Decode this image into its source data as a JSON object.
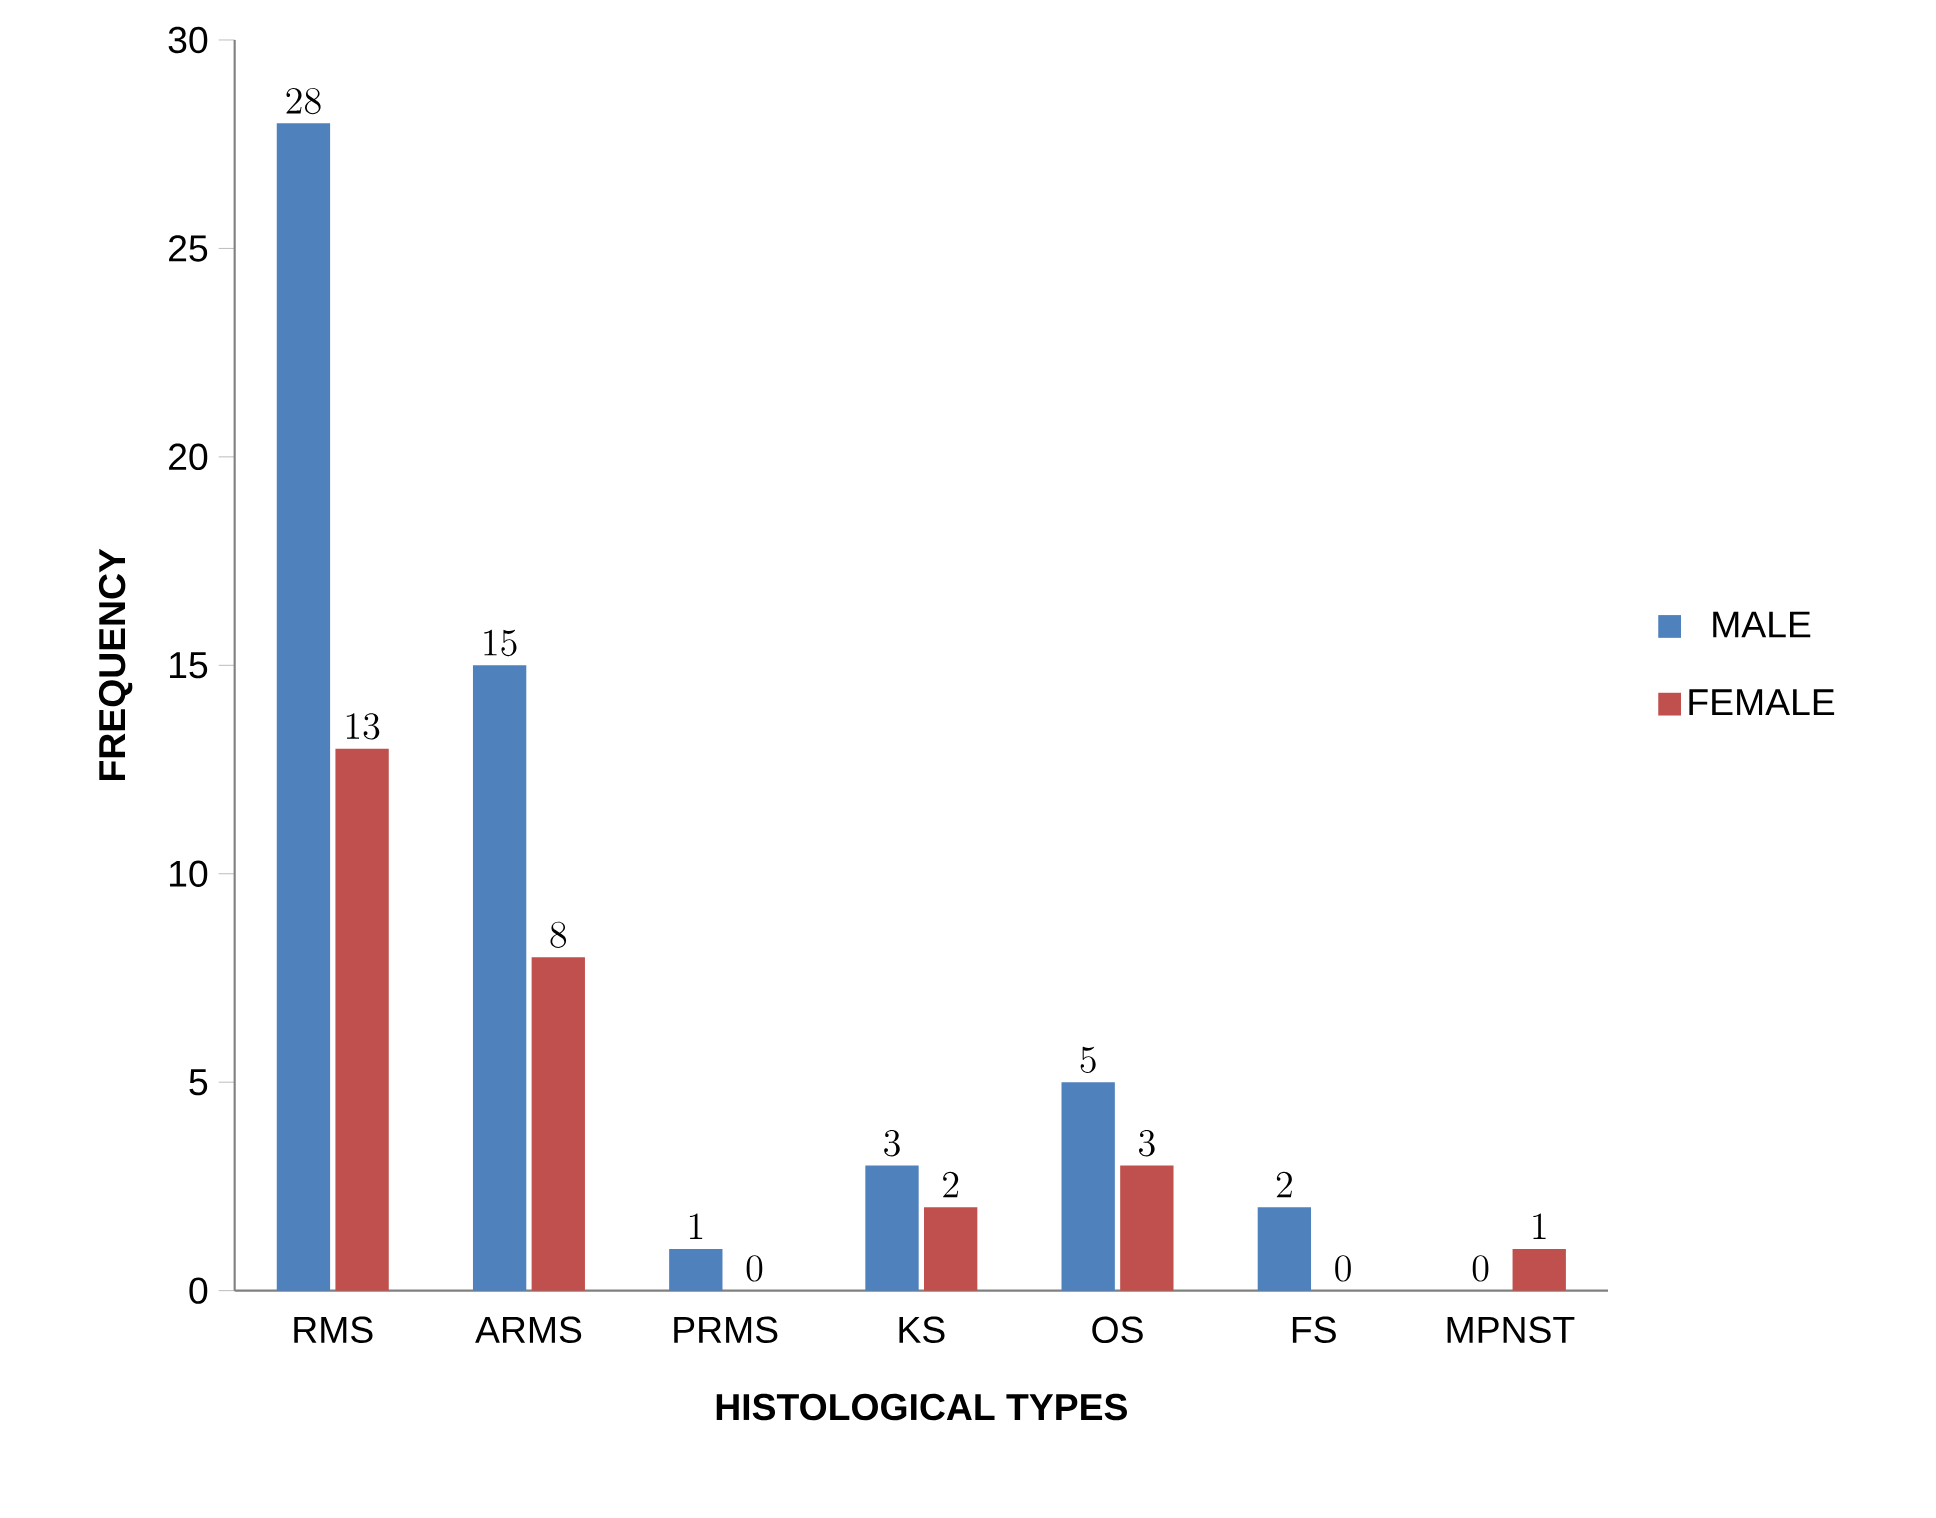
{
  "chart_data": {
    "type": "bar",
    "xlabel": "HISTOLOGICAL TYPES",
    "ylabel": "FREQUENCY",
    "categories": [
      "RMS",
      "ARMS",
      "PRMS",
      "KS",
      "OS",
      "FS",
      "MPNST"
    ],
    "series": [
      {
        "name": "MALE",
        "color": "#4f81bd",
        "values": [
          28,
          15,
          1,
          3,
          5,
          2,
          0
        ]
      },
      {
        "name": "FEMALE",
        "color": "#c0504d",
        "values": [
          13,
          8,
          0,
          2,
          3,
          0,
          1
        ]
      }
    ],
    "ylim": [
      0,
      30
    ],
    "yticks": [
      0,
      5,
      10,
      15,
      20,
      25,
      30
    ],
    "data_labels": true,
    "legend": "right",
    "grid": false
  }
}
